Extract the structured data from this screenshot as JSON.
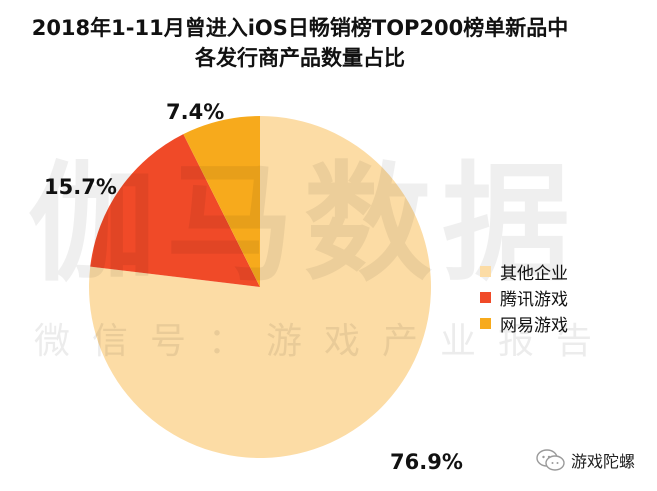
{
  "title": {
    "line1": "2018年1-11月曾进入iOS日畅销榜TOP200榜单新品中",
    "line2": "各发行商产品数量占比"
  },
  "watermark": {
    "big": "伽马数据",
    "small": "微信号：游戏产业报告"
  },
  "footer": {
    "text": "游戏陀螺",
    "icon": "wechat-icon"
  },
  "chart_data": {
    "type": "pie",
    "categories": [
      "其他企业",
      "腾讯游戏",
      "网易游戏"
    ],
    "values": [
      76.9,
      15.7,
      7.4
    ],
    "labels": [
      "76.9%",
      "15.7%",
      "7.4%"
    ],
    "colors": [
      "#FCDCA5",
      "#F04A28",
      "#F7AA1C"
    ],
    "start_angle_deg": 0,
    "direction": "clockwise",
    "legend_position": "right"
  }
}
